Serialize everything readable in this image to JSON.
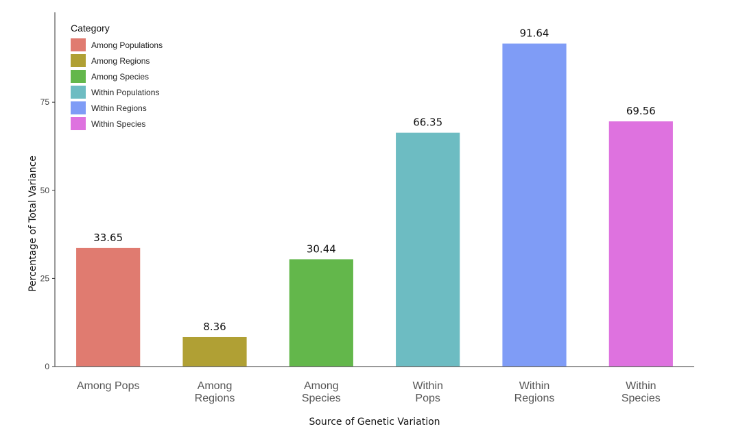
{
  "chart_data": {
    "type": "bar",
    "categories": [
      [
        "Among Pops"
      ],
      [
        "Among",
        "Regions"
      ],
      [
        "Among",
        "Species"
      ],
      [
        "Within",
        "Pops"
      ],
      [
        "Within",
        "Regions"
      ],
      [
        "Within",
        "Species"
      ]
    ],
    "values": [
      33.65,
      8.36,
      30.44,
      66.35,
      91.64,
      69.56
    ],
    "value_labels": [
      "33.65",
      "8.36",
      "30.44",
      "66.35",
      "91.64",
      "69.56"
    ],
    "colors": [
      "#e07b70",
      "#b0a034",
      "#63b74b",
      "#6dbcc2",
      "#7f9cf6",
      "#de72df"
    ],
    "xlabel": "Source of Genetic Variation",
    "ylabel": "Percentage of Total Variance",
    "ylim": [
      0,
      100
    ],
    "yticks": [
      0,
      25,
      50,
      75
    ],
    "grid": false,
    "legend": {
      "title": "Category",
      "placement": "top-left",
      "entries": [
        {
          "label": "Among Populations",
          "color": "#e07b70"
        },
        {
          "label": "Among Regions",
          "color": "#b0a034"
        },
        {
          "label": "Among Species",
          "color": "#63b74b"
        },
        {
          "label": "Within Populations",
          "color": "#6dbcc2"
        },
        {
          "label": "Within Regions",
          "color": "#7f9cf6"
        },
        {
          "label": "Within Species",
          "color": "#de72df"
        }
      ]
    }
  }
}
